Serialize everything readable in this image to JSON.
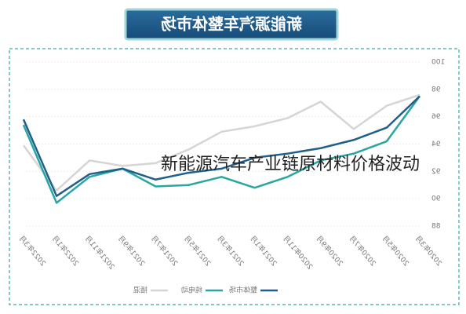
{
  "chart_data": {
    "type": "line",
    "title": "新能源汽车整体市场",
    "overlay_text": "新能源汽车产业链原材料价格波动",
    "categories": [
      "2020年3月",
      "2020年5月",
      "2020年7月",
      "2020年9月",
      "2020年11月",
      "2021年1月",
      "2021年3月",
      "2021年5月",
      "2021年7月",
      "2021年9月",
      "2021年11月",
      "2022年1月",
      "2022年3月"
    ],
    "series": [
      {
        "name": "整体市场",
        "color": "#1f5f8b",
        "values": [
          97.5,
          95.2,
          94.3,
          93.7,
          93.3,
          93.0,
          92.2,
          91.9,
          91.4,
          92.2,
          91.8,
          90.2,
          95.8
        ]
      },
      {
        "name": "纯电动",
        "color": "#2aa6a0",
        "values": [
          97.5,
          94.2,
          93.3,
          92.8,
          91.6,
          90.8,
          91.6,
          91.0,
          90.9,
          92.2,
          91.6,
          89.7,
          95.4
        ]
      },
      {
        "name": "插混",
        "color": "#d5d5d5",
        "values": [
          97.6,
          96.8,
          95.1,
          97.1,
          95.9,
          95.3,
          94.9,
          93.6,
          92.6,
          92.4,
          92.8,
          90.6,
          93.9
        ]
      }
    ],
    "ylim": [
      88,
      100
    ],
    "yticks": [
      88,
      90,
      92,
      94,
      96,
      98,
      100
    ],
    "grid": true,
    "mirrored": true
  }
}
